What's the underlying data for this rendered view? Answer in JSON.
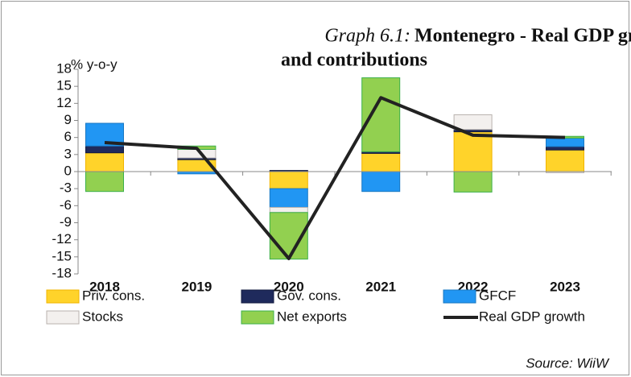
{
  "chart_data": {
    "type": "stacked_bar_line",
    "title_label": "Graph 6.1:",
    "title_lines": [
      "Montenegro - Real GDP growth",
      "and contributions"
    ],
    "ylabel": "% y-o-y",
    "source": "Source: WiiW",
    "categories": [
      "2018",
      "2019",
      "2020",
      "2021",
      "2022",
      "2023"
    ],
    "series": [
      {
        "name": "Priv. cons.",
        "color": "#ffd32a",
        "edge": "#f0b400",
        "values": [
          3.3,
          2.1,
          -3.0,
          3.2,
          7.0,
          3.8
        ]
      },
      {
        "name": "Gov. cons.",
        "color": "#1f2a5c",
        "edge": "#141c40",
        "values": [
          1.2,
          0.3,
          0.2,
          0.3,
          0.4,
          0.6
        ]
      },
      {
        "name": "GFCF",
        "color": "#2196f3",
        "edge": "#1a78c2",
        "values": [
          4.0,
          -0.4,
          -3.3,
          -3.5,
          0.0,
          1.5
        ]
      },
      {
        "name": "Stocks",
        "color": "#f3f0ee",
        "edge": "#b8b2ae",
        "values": [
          0.0,
          1.5,
          -0.9,
          0.0,
          2.6,
          -0.2
        ]
      },
      {
        "name": "Net exports",
        "color": "#92d050",
        "edge": "#3cb04a",
        "values": [
          -3.5,
          0.6,
          -8.2,
          13.0,
          -3.6,
          0.3
        ]
      }
    ],
    "line": {
      "name": "Real GDP growth",
      "color": "#222222",
      "values": [
        5.1,
        4.1,
        -15.3,
        13.0,
        6.4,
        6.0
      ]
    },
    "ylim": [
      -18,
      18
    ],
    "yticks": [
      18,
      15,
      12,
      9,
      6,
      3,
      0,
      -3,
      -6,
      -9,
      -12,
      -15,
      -18
    ]
  }
}
